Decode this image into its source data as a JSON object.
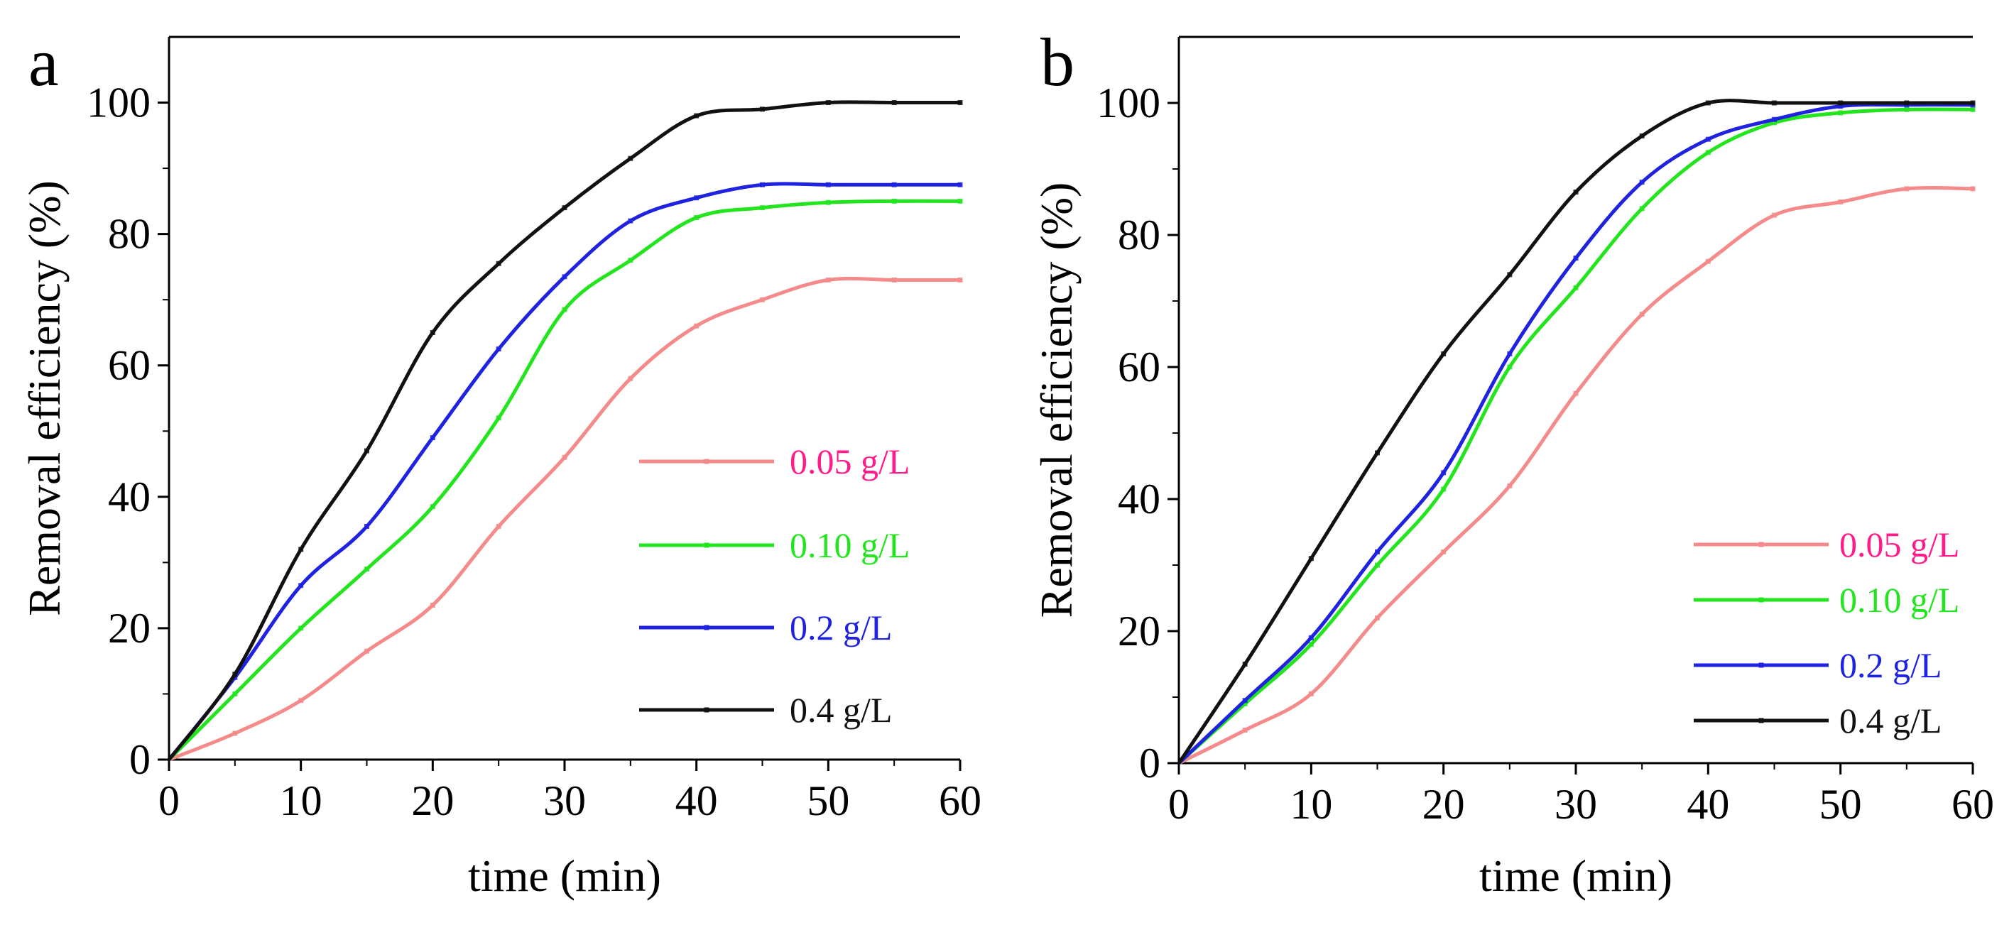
{
  "chart_data": [
    {
      "type": "line",
      "panel_label": "a",
      "xlabel": "time (min)",
      "ylabel": "Removal efficiency (%)",
      "xlim": [
        0,
        60
      ],
      "ylim": [
        0,
        110
      ],
      "xticks": [
        0,
        10,
        20,
        30,
        40,
        50,
        60
      ],
      "yticks": [
        0,
        20,
        40,
        60,
        80,
        100
      ],
      "legend_position": "lower-right",
      "x": [
        0,
        5,
        10,
        15,
        20,
        25,
        30,
        35,
        40,
        45,
        50,
        55,
        60
      ],
      "series": [
        {
          "name": "0.05 g/L",
          "line_color": "#f58a8a",
          "label_color": "#ff1c8a",
          "values": [
            0,
            4,
            9,
            16.5,
            23.5,
            35.5,
            46,
            58,
            66,
            70,
            73,
            73,
            73
          ]
        },
        {
          "name": "0.10 g/L",
          "line_color": "#22e51e",
          "label_color": "#22e51e",
          "values": [
            0,
            10,
            20,
            29,
            38.5,
            52,
            68.5,
            76,
            82.5,
            84,
            84.8,
            85,
            85
          ]
        },
        {
          "name": "0.2 g/L",
          "line_color": "#1f23e0",
          "label_color": "#1f23e0",
          "values": [
            0,
            12.5,
            26.5,
            35.5,
            49,
            62.5,
            73.5,
            82,
            85.5,
            87.5,
            87.5,
            87.5,
            87.5
          ]
        },
        {
          "name": "0.4 g/L",
          "line_color": "#111111",
          "label_color": "#111111",
          "values": [
            0,
            13,
            32,
            47,
            65,
            75.5,
            84,
            91.5,
            98,
            99,
            100,
            100,
            100
          ]
        }
      ]
    },
    {
      "type": "line",
      "panel_label": "b",
      "xlabel": "time (min)",
      "ylabel": "Removal efficiency (%)",
      "xlim": [
        0,
        60
      ],
      "ylim": [
        0,
        110
      ],
      "xticks": [
        0,
        10,
        20,
        30,
        40,
        50,
        60
      ],
      "yticks": [
        0,
        20,
        40,
        60,
        80,
        100
      ],
      "legend_position": "lower-right",
      "x": [
        0,
        5,
        10,
        15,
        20,
        25,
        30,
        35,
        40,
        45,
        50,
        55,
        60
      ],
      "series": [
        {
          "name": "0.05 g/L",
          "line_color": "#f58a8a",
          "label_color": "#ff1c8a",
          "values": [
            0,
            5,
            10.5,
            22,
            32,
            42,
            56,
            68,
            76,
            83,
            85,
            87,
            87
          ]
        },
        {
          "name": "0.10 g/L",
          "line_color": "#22e51e",
          "label_color": "#22e51e",
          "values": [
            0,
            9,
            18,
            30,
            41.5,
            60,
            72,
            84,
            92.5,
            97,
            98.5,
            99,
            99
          ]
        },
        {
          "name": "0.2 g/L",
          "line_color": "#1f23e0",
          "label_color": "#1f23e0",
          "values": [
            0,
            9.5,
            19,
            32,
            44,
            62,
            76.5,
            88,
            94.5,
            97.5,
            99.5,
            99.7,
            99.7
          ]
        },
        {
          "name": "0.4 g/L",
          "line_color": "#111111",
          "label_color": "#111111",
          "values": [
            0,
            15,
            31,
            47,
            62,
            74,
            86.5,
            95,
            100,
            100,
            100,
            100,
            100
          ]
        }
      ]
    }
  ]
}
